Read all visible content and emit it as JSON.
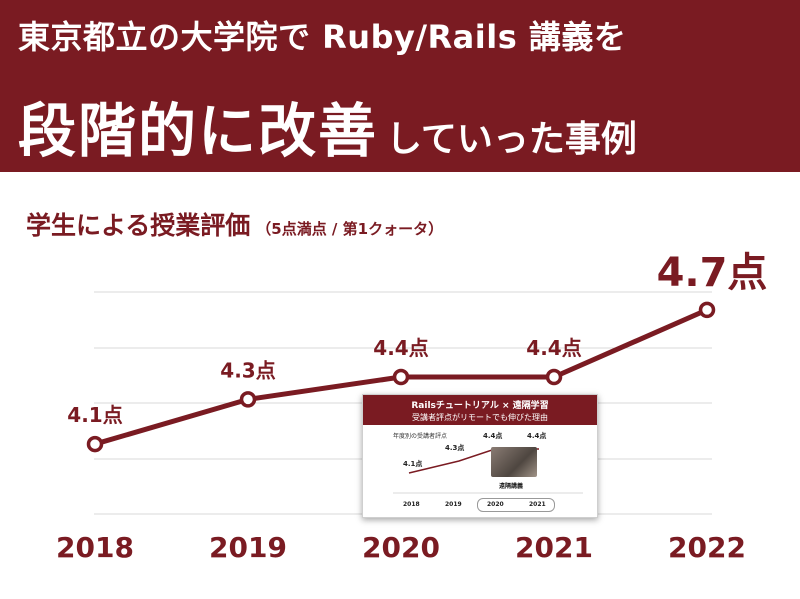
{
  "header": {
    "line1": "東京都立の大学院で Ruby/Rails 講義を",
    "line2_big": "段階的に改善",
    "line2_small": "していった事例"
  },
  "chart_title": "学生による授業評価",
  "chart_note": "（5点満点 / 第1クォータ）",
  "chart_data": {
    "type": "line",
    "title": "学生による授業評価",
    "categories": [
      "2018",
      "2019",
      "2020",
      "2021",
      "2022"
    ],
    "values": [
      4.1,
      4.3,
      4.4,
      4.4,
      4.7
    ],
    "data_labels": [
      "4.1点",
      "4.3点",
      "4.4点",
      "4.4点",
      "4.7点"
    ],
    "ylim": [
      3.85,
      4.78
    ],
    "grid": true,
    "color": "#7a1b22"
  },
  "inset": {
    "title_line1": "Railsチュートリアル × 遠隔学習",
    "title_line2": "受講者評点がリモートでも伸びた理由",
    "chart_title": "年度別の受講者評点",
    "photo_label": "遠隔講義",
    "years": [
      "2018",
      "2019",
      "2020",
      "2021"
    ],
    "values": [
      "4.1点",
      "4.3点",
      "4.4点",
      "4.4点"
    ]
  }
}
